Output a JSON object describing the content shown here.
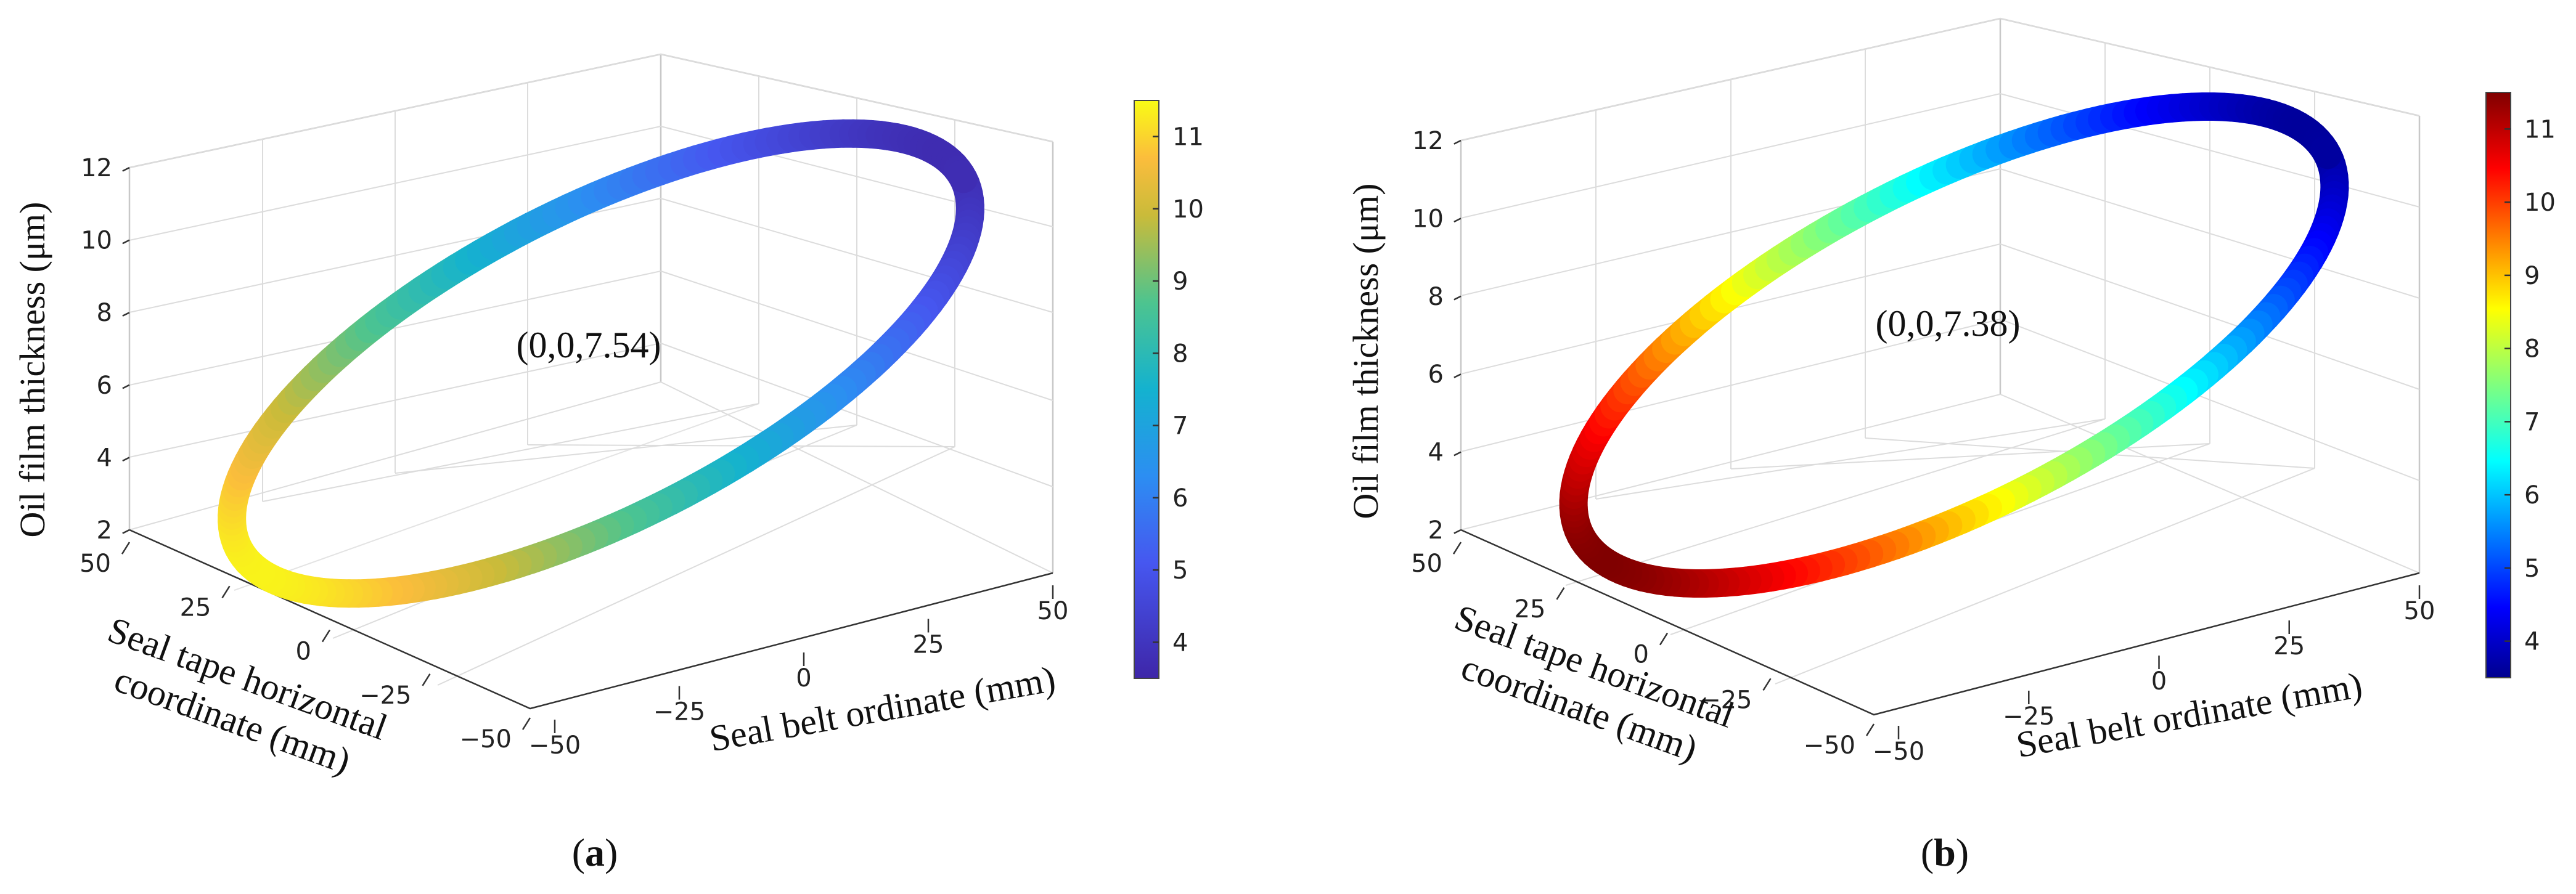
{
  "chart_data": [
    {
      "type": "3d-ring",
      "panel_label": "a",
      "colormap": "parula",
      "annotation": "(0,0,7.54)",
      "zlabel": "Oil film thickness (μm)",
      "xlabel_lines": [
        "Seal tape horizontal",
        "coordinate (mm)"
      ],
      "ylabel": "Seal belt ordinate (mm)",
      "z_ticks": [
        "2",
        "4",
        "6",
        "8",
        "10",
        "12"
      ],
      "x_ticks": [
        "50",
        "25",
        "0",
        "−25",
        "−50"
      ],
      "y_ticks": [
        "−50",
        "−25",
        "0",
        "25",
        "50"
      ],
      "zlim": [
        2,
        12
      ],
      "colorbar_ticks": [
        "4",
        "5",
        "6",
        "7",
        "8",
        "9",
        "10",
        "11"
      ],
      "colorbar_range": [
        3.5,
        11.5
      ],
      "thickness_range": [
        3.7,
        11.4
      ]
    },
    {
      "type": "3d-ring",
      "panel_label": "b",
      "colormap": "jet",
      "annotation": "(0,0,7.38)",
      "zlabel": "Oil film thickness (μm)",
      "xlabel_lines": [
        "Seal tape horizontal",
        "coordinate (mm)"
      ],
      "ylabel": "Seal belt ordinate (mm)",
      "z_ticks": [
        "2",
        "4",
        "6",
        "8",
        "10",
        "12"
      ],
      "x_ticks": [
        "50",
        "25",
        "0",
        "−25",
        "−50"
      ],
      "y_ticks": [
        "−50",
        "−25",
        "0",
        "25",
        "50"
      ],
      "zlim": [
        2,
        12
      ],
      "colorbar_ticks": [
        "4",
        "5",
        "6",
        "7",
        "8",
        "9",
        "10",
        "11"
      ],
      "colorbar_range": [
        3.5,
        11.5
      ],
      "thickness_range": [
        3.6,
        11.5
      ]
    }
  ]
}
